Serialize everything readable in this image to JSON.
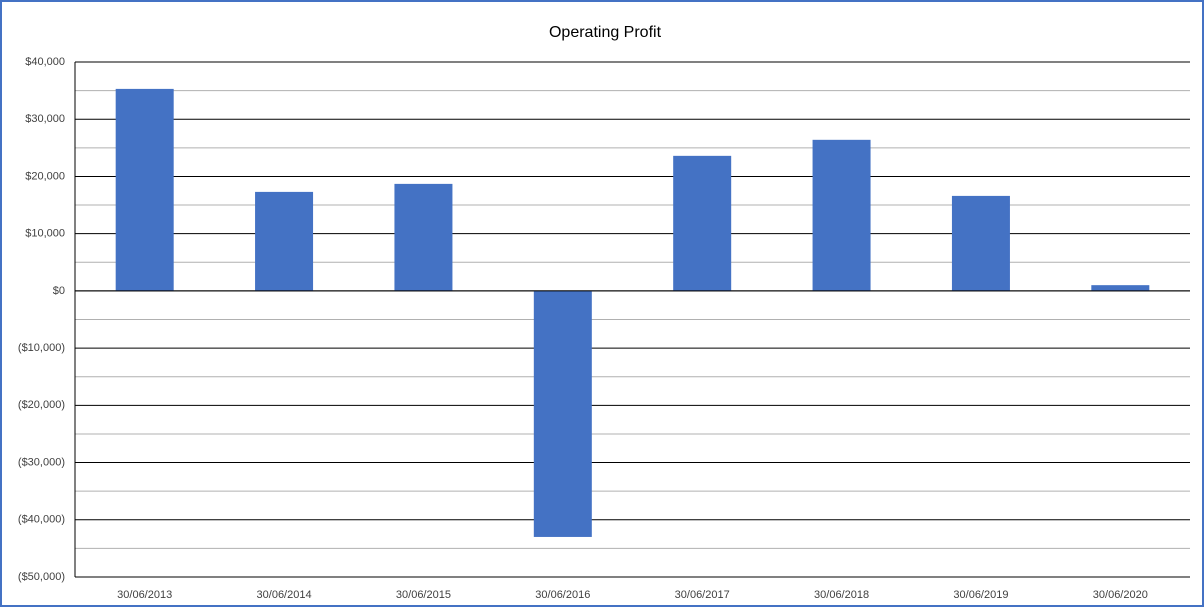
{
  "chart_data": {
    "type": "bar",
    "title": "Operating Profit",
    "categories": [
      "30/06/2013",
      "30/06/2014",
      "30/06/2015",
      "30/06/2016",
      "30/06/2017",
      "30/06/2018",
      "30/06/2019",
      "30/06/2020"
    ],
    "values": [
      35300,
      17300,
      18700,
      -43000,
      23600,
      26400,
      16600,
      1000
    ],
    "color": "#4472c4",
    "ylim": [
      -50000,
      40000
    ],
    "yticks": [
      {
        "value": -50000,
        "label": "($50,000)"
      },
      {
        "value": -40000,
        "label": "($40,000)"
      },
      {
        "value": -30000,
        "label": "($30,000)"
      },
      {
        "value": -20000,
        "label": "($20,000)"
      },
      {
        "value": -10000,
        "label": "($10,000)"
      },
      {
        "value": 0,
        "label": "$0"
      },
      {
        "value": 10000,
        "label": "$10,000"
      },
      {
        "value": 20000,
        "label": "$20,000"
      },
      {
        "value": 30000,
        "label": "$30,000"
      },
      {
        "value": 40000,
        "label": "$40,000"
      }
    ],
    "minor_yticks": [
      -45000,
      -35000,
      -25000,
      -15000,
      -5000,
      5000,
      15000,
      25000,
      35000
    ],
    "grid": true,
    "negative_label_color": "#ff0000"
  }
}
